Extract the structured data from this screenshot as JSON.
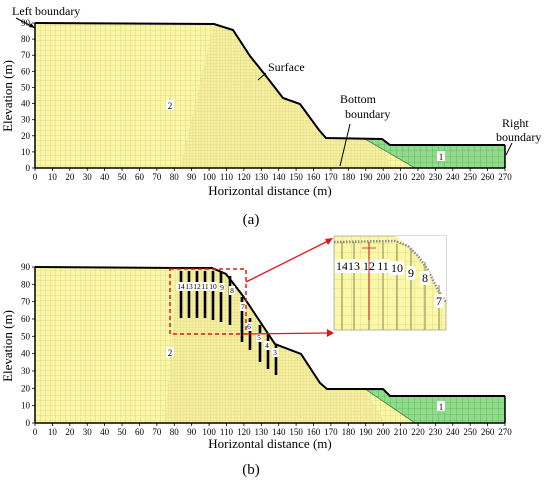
{
  "panel_a": {
    "caption": "(a)",
    "xlabel": "Horizontal distance (m)",
    "ylabel": "Elevation (m)",
    "x_ticks": [
      "0",
      "10",
      "20",
      "30",
      "40",
      "50",
      "60",
      "70",
      "80",
      "90",
      "100",
      "110",
      "120",
      "130",
      "140",
      "150",
      "160",
      "170",
      "180",
      "190",
      "200",
      "210",
      "220",
      "230",
      "240",
      "250",
      "260",
      "270"
    ],
    "y_ticks": [
      "0",
      "10",
      "20",
      "30",
      "40",
      "50",
      "60",
      "70",
      "80",
      "90"
    ],
    "annotations": {
      "left_boundary": "Left boundary",
      "surface": "Surface",
      "bottom_boundary_1": "Bottom",
      "bottom_boundary_2": "boundary",
      "right_boundary_1": "Right",
      "right_boundary_2": "boundary"
    },
    "region_labels": {
      "soil": "2",
      "bedrock": "1"
    }
  },
  "panel_b": {
    "caption": "(b)",
    "xlabel": "Horizontal distance (m)",
    "ylabel": "Elevation (m)",
    "x_ticks": [
      "0",
      "10",
      "20",
      "30",
      "40",
      "50",
      "60",
      "70",
      "80",
      "90",
      "100",
      "110",
      "120",
      "130",
      "140",
      "150",
      "160",
      "170",
      "180",
      "190",
      "200",
      "210",
      "220",
      "230",
      "240",
      "250",
      "260",
      "270"
    ],
    "y_ticks": [
      "0",
      "10",
      "20",
      "30",
      "40",
      "50",
      "60",
      "70",
      "80",
      "90"
    ],
    "region_labels": {
      "soil": "2",
      "bedrock": "1"
    },
    "pile_labels": [
      "14",
      "13",
      "12",
      "11",
      "10",
      "9",
      "8",
      "7",
      "6",
      "5",
      "4",
      "3"
    ],
    "inset_pile_labels": [
      "14",
      "13",
      "12",
      "11",
      "10",
      "9",
      "8",
      "7"
    ]
  },
  "colors": {
    "mesh_fill": "#fbf7a8",
    "mesh_line": "#d2c86a",
    "bedrock_fill": "#8fdc8a",
    "bedrock_line": "#4f9a4f",
    "pile": "#000000",
    "zoom_box": "#e0161b"
  }
}
